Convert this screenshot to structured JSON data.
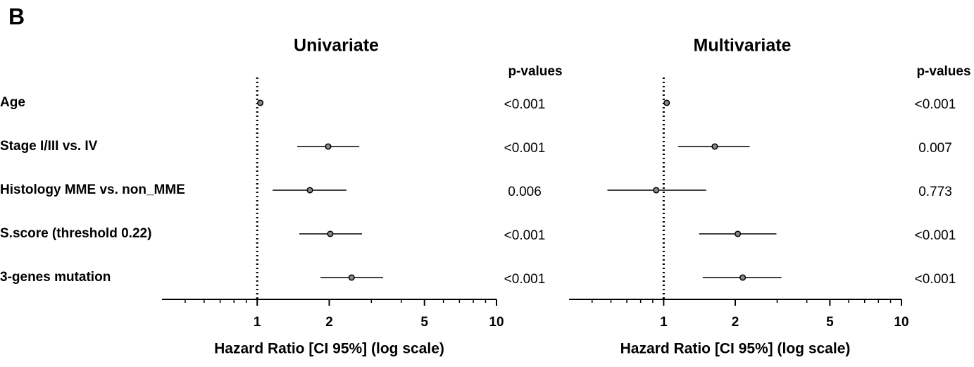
{
  "panel_label": "B",
  "chart_data": [
    {
      "type": "forest",
      "title": "Univariate",
      "pvalue_header": "p-values",
      "categories": [
        "Age",
        "Stage I/III vs. IV",
        "Histology MME vs. non_MME",
        "S.score (threshold 0.22)",
        "3-genes mutation"
      ],
      "values": [
        1.03,
        1.98,
        1.66,
        2.02,
        2.48
      ],
      "ci_low": [
        1.02,
        1.47,
        1.16,
        1.5,
        1.84
      ],
      "ci_high": [
        1.05,
        2.67,
        2.36,
        2.74,
        3.36
      ],
      "p_values": [
        "<0.001",
        "<0.001",
        "0.006",
        "<0.001",
        "<0.001"
      ],
      "xlabel": "Hazard Ratio [CI 95%] (log scale)",
      "log_x": true,
      "xlim": [
        0.4,
        10
      ],
      "xticks": [
        1,
        2,
        5,
        10
      ],
      "minor_xticks": [
        0.5,
        0.6,
        0.7,
        0.8,
        0.9,
        3,
        4,
        6,
        7,
        8,
        9
      ],
      "reference_line": 1,
      "color": "#000000"
    },
    {
      "type": "forest",
      "title": "Multivariate",
      "pvalue_header": "p-values",
      "values": [
        1.03,
        1.64,
        0.93,
        2.05,
        2.15
      ],
      "ci_low": [
        1.02,
        1.15,
        0.58,
        1.41,
        1.46
      ],
      "ci_high": [
        1.05,
        2.3,
        1.51,
        2.98,
        3.13
      ],
      "p_values": [
        "<0.001",
        "0.007",
        "0.773",
        "<0.001",
        "<0.001"
      ],
      "xlabel": "Hazard Ratio [CI 95%] (log scale)",
      "log_x": true,
      "xlim": [
        0.4,
        10
      ],
      "xticks": [
        1,
        2,
        5,
        10
      ],
      "minor_xticks": [
        0.5,
        0.6,
        0.7,
        0.8,
        0.9,
        3,
        4,
        6,
        7,
        8,
        9
      ],
      "reference_line": 1,
      "color": "#000000"
    }
  ]
}
